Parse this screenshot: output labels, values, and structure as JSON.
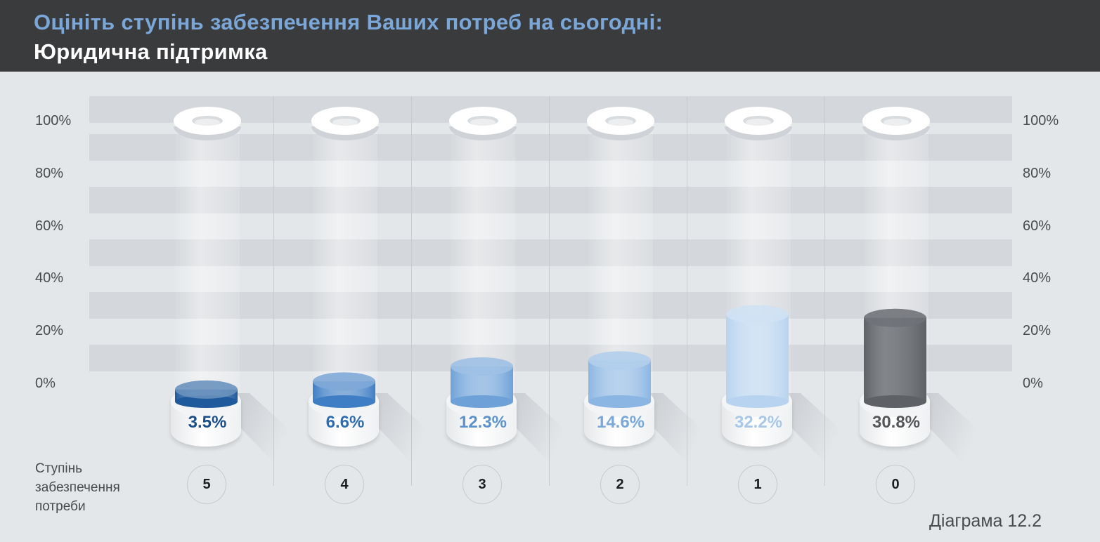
{
  "header": {
    "title": "Оцініть ступінь забезпечення Ваших потреб на сьогодні:",
    "subtitle": "Юридична підтримка"
  },
  "axis": {
    "ticks": [
      "0%",
      "20%",
      "40%",
      "60%",
      "80%",
      "100%"
    ],
    "category_label": [
      "Ступінь",
      "забезпечення",
      "потреби"
    ]
  },
  "caption": "Діаграма 12.2",
  "chart_data": {
    "type": "bar",
    "title": "Оцініть ступінь забезпечення Ваших потреб на сьогодні:",
    "subtitle": "Юридична підтримка",
    "xlabel": "Ступінь забезпечення потреби",
    "ylabel": "",
    "categories": [
      "5",
      "4",
      "3",
      "2",
      "1",
      "0"
    ],
    "values": [
      3.5,
      6.6,
      12.3,
      14.6,
      32.2,
      30.8
    ],
    "value_labels": [
      "3.5%",
      "6.6%",
      "12.3%",
      "14.6%",
      "32.2%",
      "30.8%"
    ],
    "colors": [
      "#1f5a9c",
      "#3f7ec4",
      "#6da1d8",
      "#8bb6e3",
      "#b8d3ef",
      "#5e6166"
    ],
    "label_colors": [
      "#1a4f8b",
      "#2f6db1",
      "#5d93cc",
      "#7aa8da",
      "#a9c8e8",
      "#545659"
    ],
    "ylim": [
      0,
      100
    ],
    "grid": true,
    "legend": "none"
  }
}
